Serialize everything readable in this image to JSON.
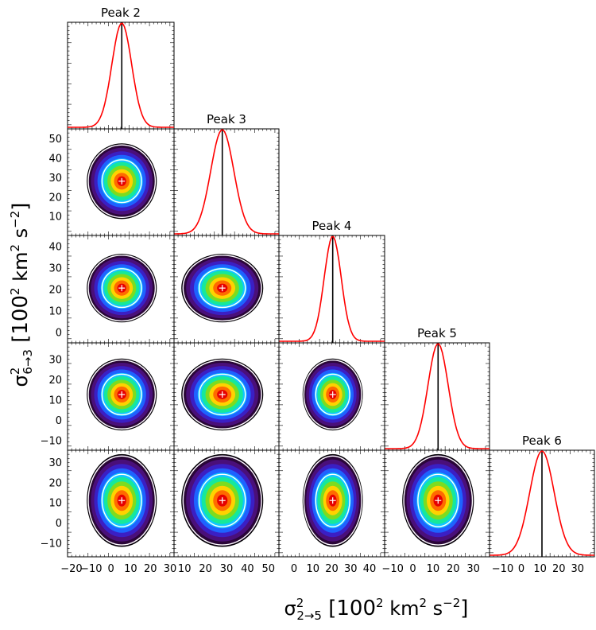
{
  "chart_data": {
    "type": "corner-plot",
    "peaks": [
      "Peak 2",
      "Peak 3",
      "Peak 4",
      "Peak 5",
      "Peak 6"
    ],
    "xlabel": {
      "base": "σ",
      "sup": "2",
      "sub": "2→5",
      "units": "[100",
      "units_sup": "2",
      "units_tail": " km",
      "km_sup": "2",
      "s": " s",
      "s_sup": "−2",
      "close": "]"
    },
    "ylabel": {
      "base": "σ",
      "sup": "2",
      "sub": "6→3",
      "units": "[100",
      "units_sup": "2",
      "units_tail": " km",
      "km_sup": "2",
      "s": " s",
      "s_sup": "−2",
      "close": "]"
    },
    "means": [
      5.5,
      28.0,
      20.5,
      12.5,
      11.0
    ],
    "sigmas": [
      5.0,
      5.5,
      4.5,
      5.0,
      6.5
    ],
    "x_ranges": [
      [
        -22,
        32
      ],
      [
        5,
        55
      ],
      [
        -8,
        48
      ],
      [
        -14,
        38
      ],
      [
        -17,
        39
      ]
    ],
    "y_ranges": [
      null,
      [
        0,
        55
      ],
      [
        -5,
        45
      ],
      [
        -15,
        38
      ],
      [
        -17,
        36
      ]
    ],
    "x_ticks": [
      {
        "values": [
          -20,
          -10,
          0,
          10,
          20,
          30
        ],
        "labels": [
          "−20",
          "−10",
          "0",
          "10",
          "20",
          "30"
        ]
      },
      {
        "values": [
          10,
          20,
          30,
          40,
          50
        ],
        "labels": [
          "10",
          "20",
          "30",
          "40",
          "50"
        ]
      },
      {
        "values": [
          0,
          10,
          20,
          30,
          40
        ],
        "labels": [
          "0",
          "10",
          "20",
          "30",
          "40"
        ]
      },
      {
        "values": [
          -10,
          0,
          10,
          20,
          30
        ],
        "labels": [
          "−10",
          "0",
          "10",
          "20",
          "30"
        ]
      },
      {
        "values": [
          -10,
          0,
          10,
          20,
          30
        ],
        "labels": [
          "−10",
          "0",
          "10",
          "20",
          "30"
        ]
      }
    ],
    "y_ticks": [
      null,
      {
        "values": [
          10,
          20,
          30,
          40,
          50
        ],
        "labels": [
          "10",
          "20",
          "30",
          "40",
          "50"
        ]
      },
      {
        "values": [
          0,
          10,
          20,
          30,
          40
        ],
        "labels": [
          "0",
          "10",
          "20",
          "30",
          "40"
        ]
      },
      {
        "values": [
          -10,
          0,
          10,
          20,
          30
        ],
        "labels": [
          "−10",
          "0",
          "10",
          "20",
          "30"
        ]
      },
      {
        "values": [
          -10,
          0,
          10,
          20,
          30
        ],
        "labels": [
          "−10",
          "0",
          "10",
          "20",
          "30"
        ]
      }
    ],
    "pdf_line_color": "#ff0000",
    "mean_line_color": "#000000",
    "contour_palette": [
      "#000000",
      "#2a0638",
      "#4a0f7a",
      "#3b1fc4",
      "#1e63ff",
      "#11c6ff",
      "#16e89b",
      "#7ddc1f",
      "#ffd200",
      "#ff6a00",
      "#e60000"
    ],
    "contour_lines": [
      "#ffffff",
      "#000000"
    ]
  }
}
